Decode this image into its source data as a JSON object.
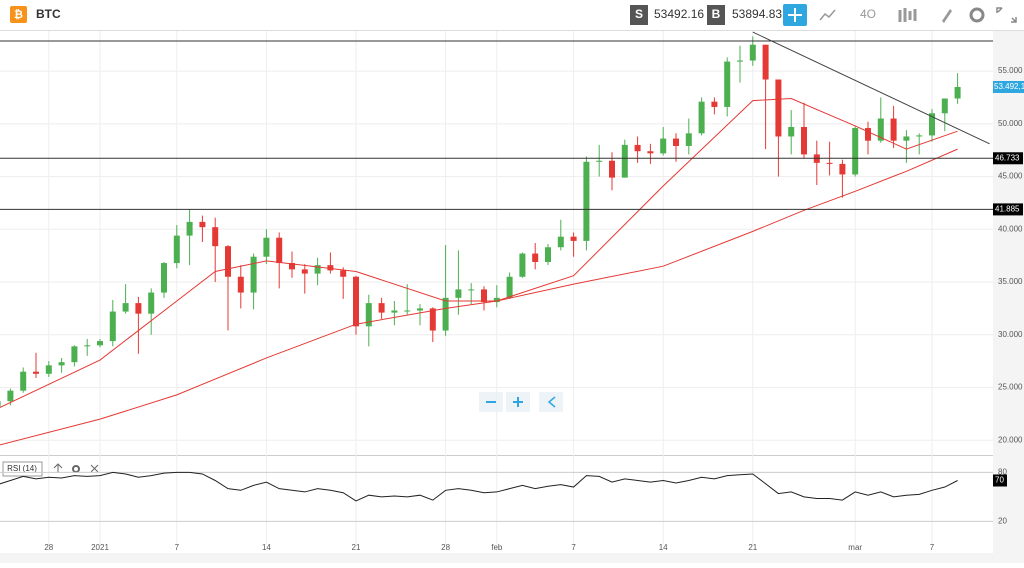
{
  "header": {
    "symbol": "BTC",
    "sell_label": "S",
    "sell_price": "53492.16",
    "buy_label": "B",
    "buy_price": "53894.83",
    "interval": "4O"
  },
  "chart_data": {
    "type": "candlestick",
    "candles": {
      "open": [
        23200,
        23700,
        24700,
        26500,
        26300,
        27100,
        27400,
        28900,
        29000,
        29400,
        32200,
        33000,
        32000,
        34000,
        36800,
        39400,
        40700,
        40200,
        38400,
        35500,
        34000,
        37400,
        39200,
        36800,
        36200,
        35800,
        36600,
        36100,
        35500,
        30800,
        33000,
        32100,
        32300,
        32300,
        32500,
        30400,
        33500,
        34300,
        34300,
        33100,
        33500,
        35500,
        37700,
        36900,
        38300,
        39300,
        38900,
        46400,
        46500,
        44900,
        48000,
        47400,
        47200,
        48600,
        47900,
        49100,
        52100,
        51600,
        55900,
        56000,
        57500,
        54200,
        48800,
        49700,
        47100,
        46300,
        46200,
        45200,
        49600,
        48400,
        50500,
        48400,
        48800,
        48900,
        51000,
        52400
      ],
      "high": [
        24000,
        24900,
        26900,
        28300,
        27500,
        27800,
        29000,
        29600,
        29600,
        33300,
        34800,
        33600,
        34400,
        36900,
        40400,
        41900,
        41300,
        41100,
        38500,
        36600,
        37700,
        40000,
        39700,
        37900,
        36700,
        37300,
        37800,
        36400,
        35600,
        33800,
        33500,
        33200,
        34800,
        32900,
        32600,
        38500,
        38000,
        34900,
        34600,
        34700,
        35900,
        37800,
        38700,
        38600,
        40900,
        39700,
        46900,
        48000,
        47300,
        48500,
        48800,
        48100,
        49700,
        49100,
        50500,
        52500,
        52500,
        56300,
        57400,
        58300,
        57500,
        54200,
        51300,
        52000,
        48400,
        48300,
        46600,
        49800,
        50200,
        52500,
        51700,
        49400,
        49100,
        51400,
        52400,
        54800
      ],
      "low": [
        22700,
        23300,
        24500,
        25900,
        26000,
        26400,
        27000,
        28000,
        28800,
        28900,
        32000,
        28200,
        30000,
        33500,
        36300,
        36600,
        38800,
        35000,
        30400,
        32500,
        32400,
        36700,
        34400,
        35400,
        33900,
        34700,
        35800,
        33400,
        30000,
        28900,
        31500,
        30900,
        31900,
        30900,
        29300,
        29900,
        31900,
        32900,
        32300,
        32600,
        33400,
        35400,
        36200,
        36600,
        38000,
        37400,
        38000,
        45000,
        43700,
        44900,
        46300,
        46200,
        47000,
        46400,
        47100,
        48900,
        50900,
        50700,
        53900,
        55500,
        47600,
        45000,
        47100,
        46700,
        44200,
        45100,
        43000,
        45000,
        47100,
        48200,
        47700,
        46300,
        47100,
        48300,
        49300,
        51900
      ],
      "close": [
        23700,
        24700,
        26500,
        26300,
        27100,
        27400,
        28900,
        29000,
        29400,
        32200,
        33000,
        32000,
        34000,
        36800,
        39400,
        40700,
        40200,
        38400,
        35500,
        34000,
        37400,
        39200,
        36800,
        36200,
        35800,
        36600,
        36100,
        35500,
        30800,
        33000,
        32100,
        32300,
        32300,
        32500,
        30400,
        33500,
        34300,
        34300,
        33100,
        33500,
        35500,
        37700,
        36900,
        38300,
        39300,
        38900,
        46400,
        46500,
        44900,
        48000,
        47400,
        47200,
        48600,
        47900,
        49100,
        52100,
        51600,
        55900,
        56000,
        57500,
        54200,
        48800,
        49700,
        47100,
        46300,
        46200,
        45200,
        49600,
        48400,
        50500,
        48400,
        48800,
        48900,
        51000,
        52400,
        53492.16
      ],
      "up_color": "#4caf50",
      "down_color": "#e53935"
    },
    "last_label": "53.492,16",
    "ma_fast": {
      "color": "#e53935",
      "x": [
        0,
        8,
        14,
        17,
        21,
        28,
        35,
        39,
        45,
        52,
        59,
        62,
        67,
        71,
        75
      ],
      "values": [
        23000,
        27600,
        33200,
        36000,
        37000,
        36000,
        33200,
        33200,
        35600,
        44100,
        52200,
        52400,
        49800,
        47600,
        49300
      ]
    },
    "ma_slow": {
      "color": "#e53935",
      "x": [
        0,
        8,
        14,
        21,
        28,
        35,
        39,
        45,
        52,
        59,
        63,
        67,
        71,
        75
      ],
      "values": [
        19500,
        22000,
        24300,
        27800,
        31000,
        32500,
        33200,
        34800,
        36500,
        39800,
        41800,
        43600,
        45500,
        47600
      ]
    },
    "levels": [
      {
        "value": 57850
      },
      {
        "value": 46733,
        "label": "46.733"
      },
      {
        "value": 41885,
        "label": "41.885"
      }
    ],
    "trendline": {
      "x": [
        59,
        77.5
      ],
      "values": [
        58700,
        48100
      ]
    },
    "ylim": [
      18600,
      58800
    ],
    "yticks": [
      {
        "value": 20000,
        "label": "20.000"
      },
      {
        "value": 25000,
        "label": "25.000"
      },
      {
        "value": 30000,
        "label": "30.000"
      },
      {
        "value": 35000,
        "label": "35.000"
      },
      {
        "value": 40000,
        "label": "40.000"
      },
      {
        "value": 45000,
        "label": "45.000"
      },
      {
        "value": 50000,
        "label": "50.000"
      },
      {
        "value": 55000,
        "label": "55.000"
      }
    ],
    "xticks": [
      {
        "value": 4,
        "label": "28"
      },
      {
        "value": 8,
        "label": "2021"
      },
      {
        "value": 14,
        "label": "7"
      },
      {
        "value": 21,
        "label": "14"
      },
      {
        "value": 28,
        "label": "21"
      },
      {
        "value": 35,
        "label": "28"
      },
      {
        "value": 39,
        "label": "feb"
      },
      {
        "value": 45,
        "label": "7"
      },
      {
        "value": 52,
        "label": "14"
      },
      {
        "value": 59,
        "label": "21"
      },
      {
        "value": 67,
        "label": "mar"
      },
      {
        "value": 73,
        "label": "7"
      }
    ],
    "rsi": {
      "label": "RSI (14)",
      "values": [
        65,
        70,
        75,
        72,
        74,
        73,
        76,
        75,
        76,
        80,
        78,
        74,
        76,
        79,
        80,
        80,
        78,
        70,
        60,
        58,
        64,
        68,
        60,
        58,
        56,
        60,
        58,
        55,
        45,
        52,
        50,
        51,
        50,
        52,
        46,
        58,
        60,
        58,
        55,
        56,
        60,
        64,
        60,
        63,
        65,
        62,
        76,
        75,
        68,
        72,
        70,
        68,
        70,
        67,
        70,
        74,
        72,
        76,
        77,
        78,
        66,
        54,
        56,
        50,
        48,
        48,
        46,
        56,
        52,
        56,
        50,
        52,
        53,
        58,
        62,
        70
      ],
      "ylim": [
        -9,
        100
      ],
      "yticks": [
        80,
        20
      ]
    }
  }
}
